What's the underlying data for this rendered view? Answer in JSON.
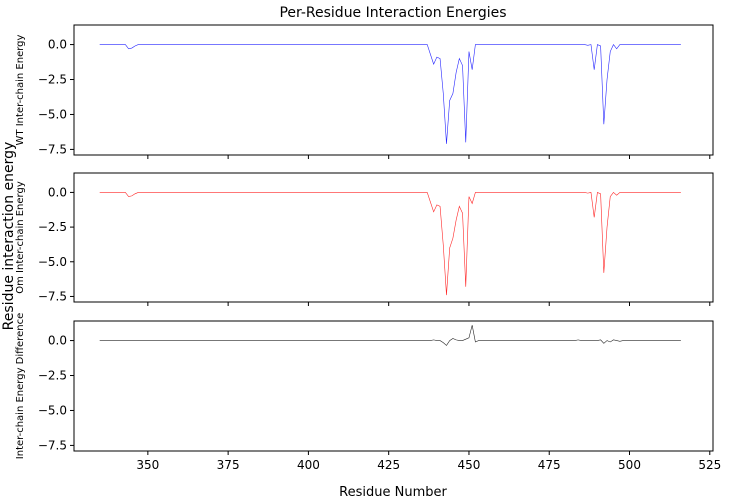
{
  "chart_data": {
    "type": "line",
    "title": "Per-Residue Interaction Energies",
    "xlabel": "Residue Number",
    "ylabel": "Residue interaction energy",
    "xlim": [
      327,
      526
    ],
    "x_ticks": [
      350,
      375,
      400,
      425,
      450,
      475,
      500,
      525
    ],
    "ylim": [
      -7.9,
      1.4
    ],
    "y_ticks": [
      0.0,
      -2.5,
      -5.0,
      -7.5
    ],
    "y_tick_labels": [
      "0.0",
      "−2.5",
      "−5.0",
      "−7.5"
    ],
    "grid": false,
    "panels": [
      {
        "ylabel": "WT Inter-chain Energy",
        "color": "#0000ff",
        "series": {
          "x": [
            335,
            343,
            344,
            345,
            346,
            347,
            348,
            436,
            437,
            438,
            439,
            440,
            441,
            442,
            443,
            444,
            445,
            446,
            447,
            448,
            449,
            450,
            451,
            452,
            453,
            454,
            484,
            485,
            486,
            487,
            488,
            489,
            490,
            491,
            492,
            493,
            494,
            495,
            496,
            497,
            498,
            516
          ],
          "y": [
            0.0,
            0.0,
            -0.3,
            -0.25,
            -0.1,
            0.0,
            0.0,
            0.0,
            0.0,
            -0.7,
            -1.4,
            -0.9,
            -1.0,
            -3.5,
            -7.1,
            -4.0,
            -3.5,
            -2.0,
            -1.0,
            -1.5,
            -7.0,
            -0.5,
            -1.8,
            0.0,
            0.0,
            0.0,
            0.0,
            0.0,
            0.0,
            -0.05,
            0.0,
            -1.8,
            0.0,
            -0.1,
            -5.7,
            -2.5,
            -0.5,
            0.0,
            -0.3,
            0.0,
            0.0,
            0.0
          ]
        }
      },
      {
        "ylabel": "Om Inter-chain Energy",
        "color": "#ff0000",
        "series": {
          "x": [
            335,
            343,
            344,
            345,
            346,
            347,
            348,
            436,
            437,
            438,
            439,
            440,
            441,
            442,
            443,
            444,
            445,
            446,
            447,
            448,
            449,
            450,
            451,
            452,
            453,
            454,
            484,
            485,
            486,
            487,
            488,
            489,
            490,
            491,
            492,
            493,
            494,
            495,
            496,
            497,
            498,
            516
          ],
          "y": [
            0.0,
            0.0,
            -0.3,
            -0.25,
            -0.1,
            0.0,
            0.0,
            0.0,
            0.0,
            -0.7,
            -1.4,
            -0.9,
            -1.0,
            -3.8,
            -7.4,
            -4.0,
            -3.3,
            -2.0,
            -1.0,
            -1.5,
            -6.8,
            -0.3,
            -0.8,
            0.0,
            0.0,
            0.0,
            0.0,
            0.0,
            0.0,
            -0.05,
            0.0,
            -1.8,
            0.0,
            -0.1,
            -5.8,
            -2.5,
            -0.3,
            0.0,
            -0.2,
            0.0,
            0.0,
            0.0
          ]
        }
      },
      {
        "ylabel": "Inter-chain Energy Difference",
        "color": "#000000",
        "series": {
          "x": [
            335,
            438,
            439,
            440,
            441,
            442,
            443,
            444,
            445,
            446,
            447,
            448,
            449,
            450,
            451,
            452,
            453,
            454,
            483,
            484,
            485,
            490,
            491,
            492,
            493,
            494,
            495,
            496,
            497,
            498,
            516
          ],
          "y": [
            0.0,
            0.0,
            0.05,
            0.0,
            0.0,
            -0.15,
            -0.35,
            0.0,
            0.15,
            0.05,
            0.0,
            0.0,
            0.1,
            0.2,
            1.1,
            -0.1,
            0.0,
            0.0,
            0.0,
            0.05,
            0.0,
            0.0,
            0.05,
            -0.2,
            0.0,
            -0.1,
            0.05,
            0.0,
            -0.05,
            0.0,
            0.0
          ]
        }
      }
    ]
  }
}
